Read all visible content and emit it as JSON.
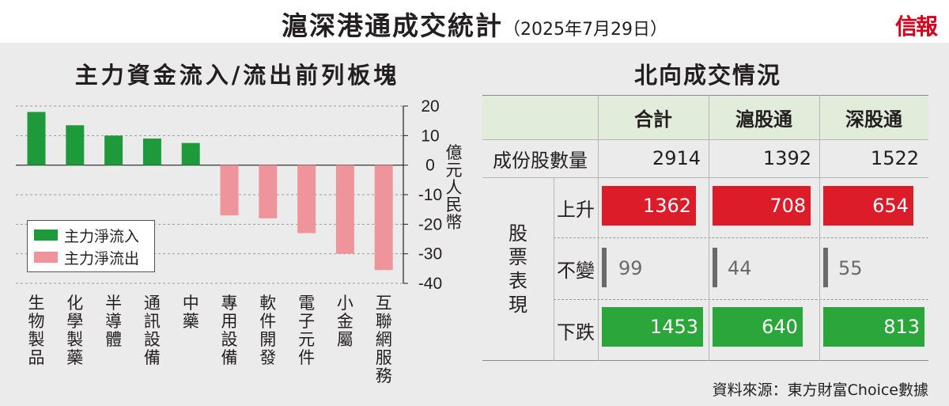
{
  "header": {
    "title": "滬深港通成交統計",
    "date": "（2025年7月29日）",
    "logo": "信報"
  },
  "left_panel": {
    "title": "主力資金流入/流出前列板塊",
    "unit": "億元人民幣",
    "legend": {
      "inflow": "主力淨流入",
      "outflow": "主力淨流出"
    }
  },
  "chart_data": {
    "type": "bar",
    "title": "主力資金流入/流出前列板塊",
    "ylabel": "億元人民幣",
    "categories": [
      "生物製品",
      "化學製藥",
      "半導體",
      "通訊設備",
      "中藥",
      "專用設備",
      "軟件開發",
      "電子元件",
      "小金屬",
      "互聯網服務"
    ],
    "values": [
      18,
      13.5,
      10,
      9,
      7.5,
      -17,
      -18,
      -23,
      -30,
      -35.5
    ],
    "series": [
      {
        "name": "主力淨流入",
        "values": [
          18,
          13.5,
          10,
          9,
          7.5,
          null,
          null,
          null,
          null,
          null
        ]
      },
      {
        "name": "主力淨流出",
        "values": [
          null,
          null,
          null,
          null,
          null,
          -17,
          -18,
          -23,
          -30,
          -35.5
        ]
      }
    ],
    "ylim": [
      -40,
      20
    ],
    "yticks": [
      20,
      10,
      0,
      -10,
      -20,
      -30,
      -40
    ],
    "ytick_labels": [
      "20",
      "10",
      "0",
      "-10",
      "-20",
      "-30",
      "-40"
    ],
    "colors": {
      "inflow": "#1e9a3a",
      "outflow": "#f0949b"
    },
    "grid": true,
    "legend_position": "bottom-left"
  },
  "right_panel": {
    "title": "北向成交情況",
    "columns": [
      "合計",
      "滬股通",
      "深股通"
    ],
    "row_constituents": {
      "label": "成份股數量",
      "values": [
        "2914",
        "1392",
        "1522"
      ]
    },
    "performance": {
      "group_label": "股票表現",
      "rows": [
        {
          "label": "上升",
          "values": [
            "1362",
            "708",
            "654"
          ],
          "fill": [
            0.93,
            0.97,
            0.89
          ],
          "color": "#dd1c2a"
        },
        {
          "label": "不變",
          "values": [
            "99",
            "44",
            "55"
          ],
          "color": "#6a6a6a"
        },
        {
          "label": "下跌",
          "values": [
            "1453",
            "640",
            "813"
          ],
          "fill": [
            1.0,
            0.89,
            1.0
          ],
          "color": "#2aa63a"
        }
      ]
    }
  },
  "footer": {
    "source": "資料來源：東方財富Choice數據"
  }
}
